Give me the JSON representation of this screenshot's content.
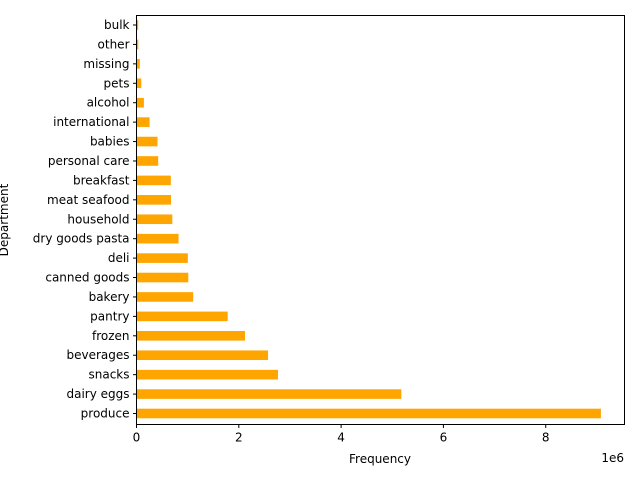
{
  "chart_data": {
    "type": "bar",
    "orientation": "horizontal",
    "categories": [
      "produce",
      "dairy eggs",
      "snacks",
      "beverages",
      "frozen",
      "pantry",
      "bakery",
      "canned goods",
      "deli",
      "dry goods pasta",
      "household",
      "meat seafood",
      "breakfast",
      "personal care",
      "babies",
      "international",
      "alcohol",
      "pets",
      "missing",
      "other",
      "bulk"
    ],
    "values": [
      9079273,
      5177182,
      2766406,
      2571901,
      2121731,
      1782705,
      1108131,
      1012074,
      1003834,
      822136,
      699857,
      674781,
      670850,
      424306,
      410392,
      255991,
      144627,
      93060,
      64768,
      34411,
      33451
    ],
    "xlabel": "Frequency",
    "ylabel": "Department",
    "xlim": [
      0,
      9540000
    ],
    "xticks": [
      0,
      2,
      4,
      6,
      8
    ],
    "x_scale_label": "1e6",
    "bar_color": "#ffa500",
    "grid": false
  }
}
